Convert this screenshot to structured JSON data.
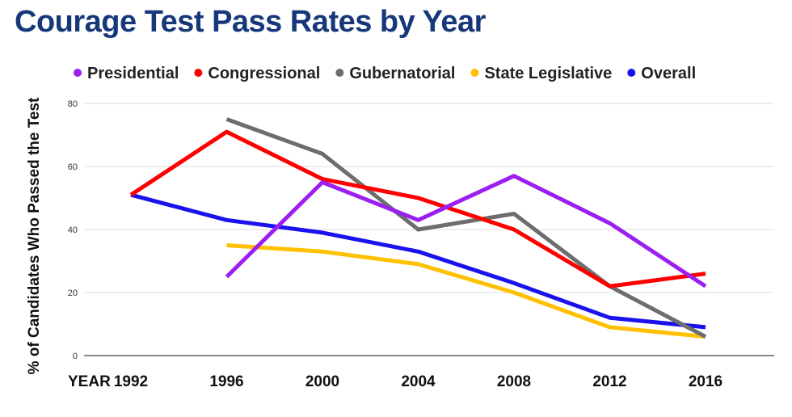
{
  "chart_data": {
    "type": "line",
    "title": "Courage Test Pass Rates by Year",
    "xlabel": "YEAR",
    "ylabel": "% of Candidates Who Passed the Test",
    "x": [
      "1992",
      "1996",
      "2000",
      "2004",
      "2008",
      "2012",
      "2016"
    ],
    "yticks": [
      0,
      20,
      40,
      60,
      80
    ],
    "ylim": [
      0,
      80
    ],
    "grid": true,
    "legend_position": "top",
    "series": [
      {
        "name": "Presidential",
        "color": "#9b1ff0",
        "values": [
          null,
          25,
          55,
          43,
          57,
          42,
          22
        ]
      },
      {
        "name": "Congressional",
        "color": "#ff0000",
        "values": [
          51,
          71,
          56,
          50,
          40,
          22,
          26
        ]
      },
      {
        "name": "Gubernatorial",
        "color": "#6d6d6d",
        "values": [
          null,
          75,
          64,
          40,
          45,
          22,
          6
        ]
      },
      {
        "name": "State Legislative",
        "color": "#ffc000",
        "values": [
          null,
          35,
          33,
          29,
          20,
          9,
          6
        ]
      },
      {
        "name": "Overall",
        "color": "#1a12ee",
        "values": [
          51,
          43,
          39,
          33,
          23,
          12,
          9
        ]
      }
    ]
  }
}
